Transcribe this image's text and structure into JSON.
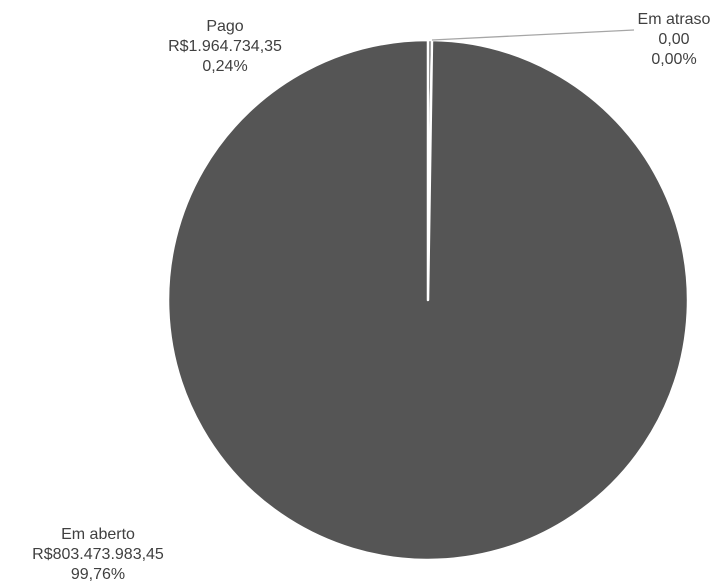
{
  "chart_data": {
    "type": "pie",
    "title": "",
    "slices": [
      {
        "label": "Pago",
        "value": 1964734.35,
        "value_text": "R$1.964.734,35",
        "percent_text": "0,24%",
        "color": "#555555"
      },
      {
        "label": "Em atraso",
        "value": 0,
        "value_text": "0,00",
        "percent_text": "0,00%",
        "color": "#555555"
      },
      {
        "label": "Em aberto",
        "value": 803473983.45,
        "value_text": "R$803.473.983,45",
        "percent_text": "99,76%",
        "color": "#555555"
      }
    ],
    "start_angle": "12 o'clock",
    "direction": "clockwise",
    "slice_border_color": "#ffffff",
    "leader_line_color": "#a6a6a6",
    "label_color": "#404040",
    "legend": "none"
  }
}
